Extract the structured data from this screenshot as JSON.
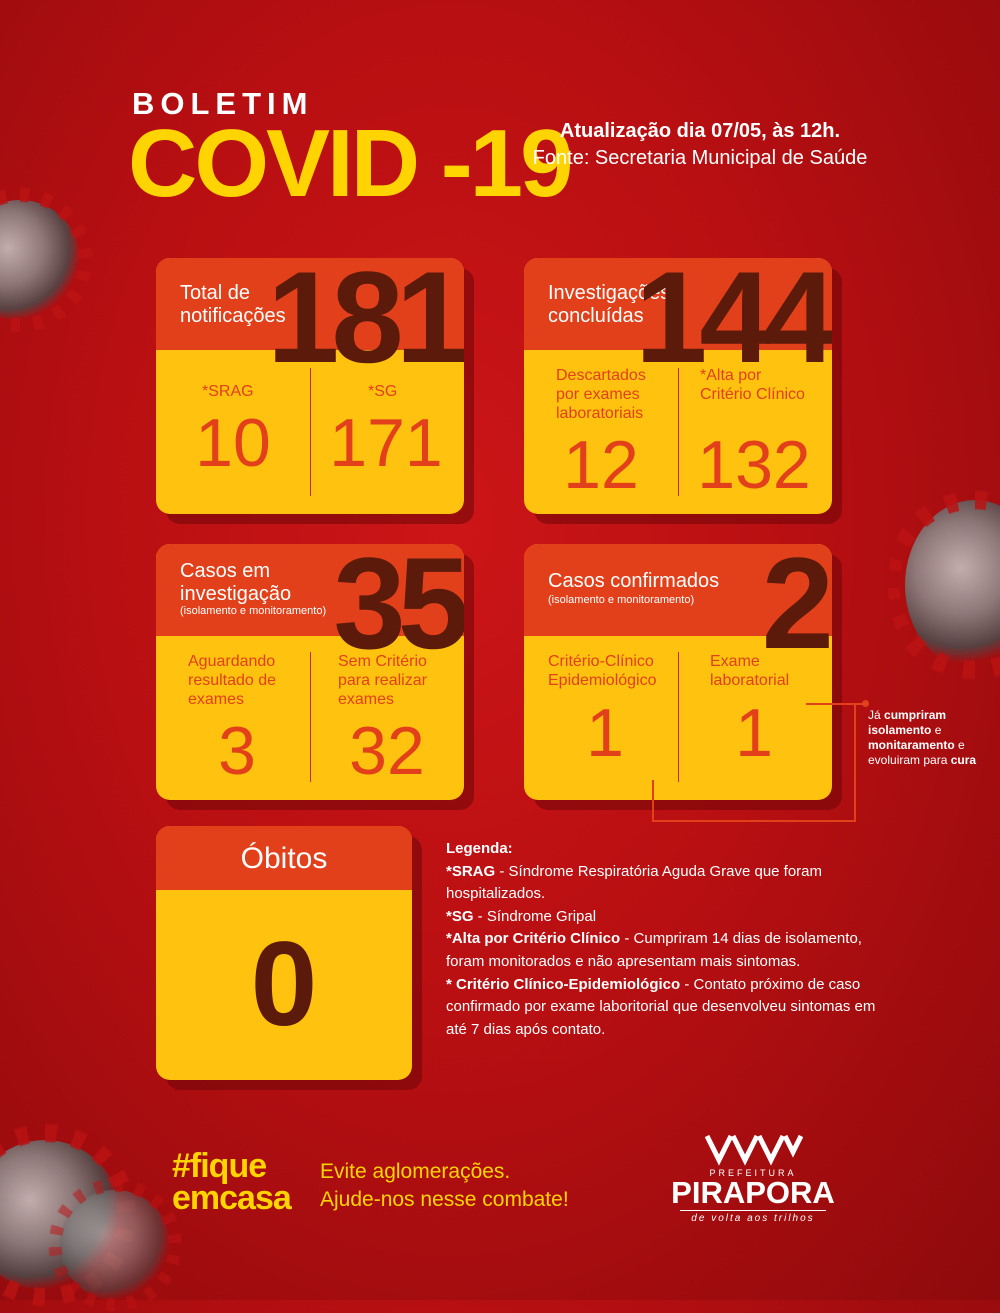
{
  "header": {
    "boletim": "BOLETIM",
    "title": "COVID -19",
    "update_line1": "Atualização dia 07/05, às 12h.",
    "update_line2": "Fonte: Secretaria Municipal de Saúde"
  },
  "cards": {
    "notificacoes": {
      "title_line1": "Total de",
      "title_line2": "notificações",
      "total": "181",
      "left_label": "*SRAG",
      "left_value": "10",
      "right_label": "*SG",
      "right_value": "171"
    },
    "investigacoes": {
      "title_line1": "Investigações",
      "title_line2": "concluídas",
      "total": "144",
      "left_label_line1": "Descartados",
      "left_label_line2": "por exames",
      "left_label_line3": "laboratoriais",
      "left_value": "12",
      "right_label_line1": "*Alta por",
      "right_label_line2": "Critério Clínico",
      "right_value": "132"
    },
    "investigacao": {
      "title_line1": "Casos em",
      "title_line2": "investigação",
      "subtitle": "(isolamento e monitoramento)",
      "total": "35",
      "left_label_line1": "Aguardando",
      "left_label_line2": "resultado de",
      "left_label_line3": "exames",
      "left_value": "3",
      "right_label_line1": "Sem Critério",
      "right_label_line2": "para realizar",
      "right_label_line3": "exames",
      "right_value": "32"
    },
    "confirmados": {
      "title": "Casos confirmados",
      "subtitle": "(isolamento e monitoramento)",
      "total": "2",
      "left_label_line1": "Critério-Clínico",
      "left_label_line2": "Epidemiológico",
      "left_value": "1",
      "right_label_line1": "Exame",
      "right_label_line2": "laboratorial",
      "right_value": "1"
    },
    "obitos": {
      "title": "Óbitos",
      "value": "0"
    }
  },
  "note": {
    "p1": "Já ",
    "b1": "cumpriram isolamento",
    "p2": " e ",
    "b2": "monitaramento",
    "p3": " e evoluiram para ",
    "b3": "cura"
  },
  "legend": {
    "heading": "Legenda:",
    "srag_term": "*SRAG",
    "srag_def": " - Síndrome Respiratória Aguda Grave que foram hospitalizados.",
    "sg_term": "*SG",
    "sg_def": " - Síndrome Gripal",
    "alta_term": "*Alta por Critério Clínico",
    "alta_def": " - Cumpriram 14 dias de isolamento, foram monitorados e não apresentam mais sintomas.",
    "crit_term": "* Critério Clínico-Epidemiológico",
    "crit_def": " - Contato próximo de caso confirmado por exame laboritorial que desenvolveu sintomas em até 7 dias após contato."
  },
  "footer": {
    "hashtag_line1": "#fique",
    "hashtag_line2": "emcasa",
    "slogan_line1": "Evite aglomerações.",
    "slogan_line2": "Ajude-nos nesse combate!",
    "logo_prefeitura": "PREFEITURA",
    "logo_city": "PIRAPORA",
    "logo_tagline": "de volta aos trilhos"
  },
  "colors": {
    "background": "#b80f12",
    "accent_yellow": "#ffc20e",
    "header_orange": "#e2401a",
    "number_dark": "#5c1a0a"
  }
}
